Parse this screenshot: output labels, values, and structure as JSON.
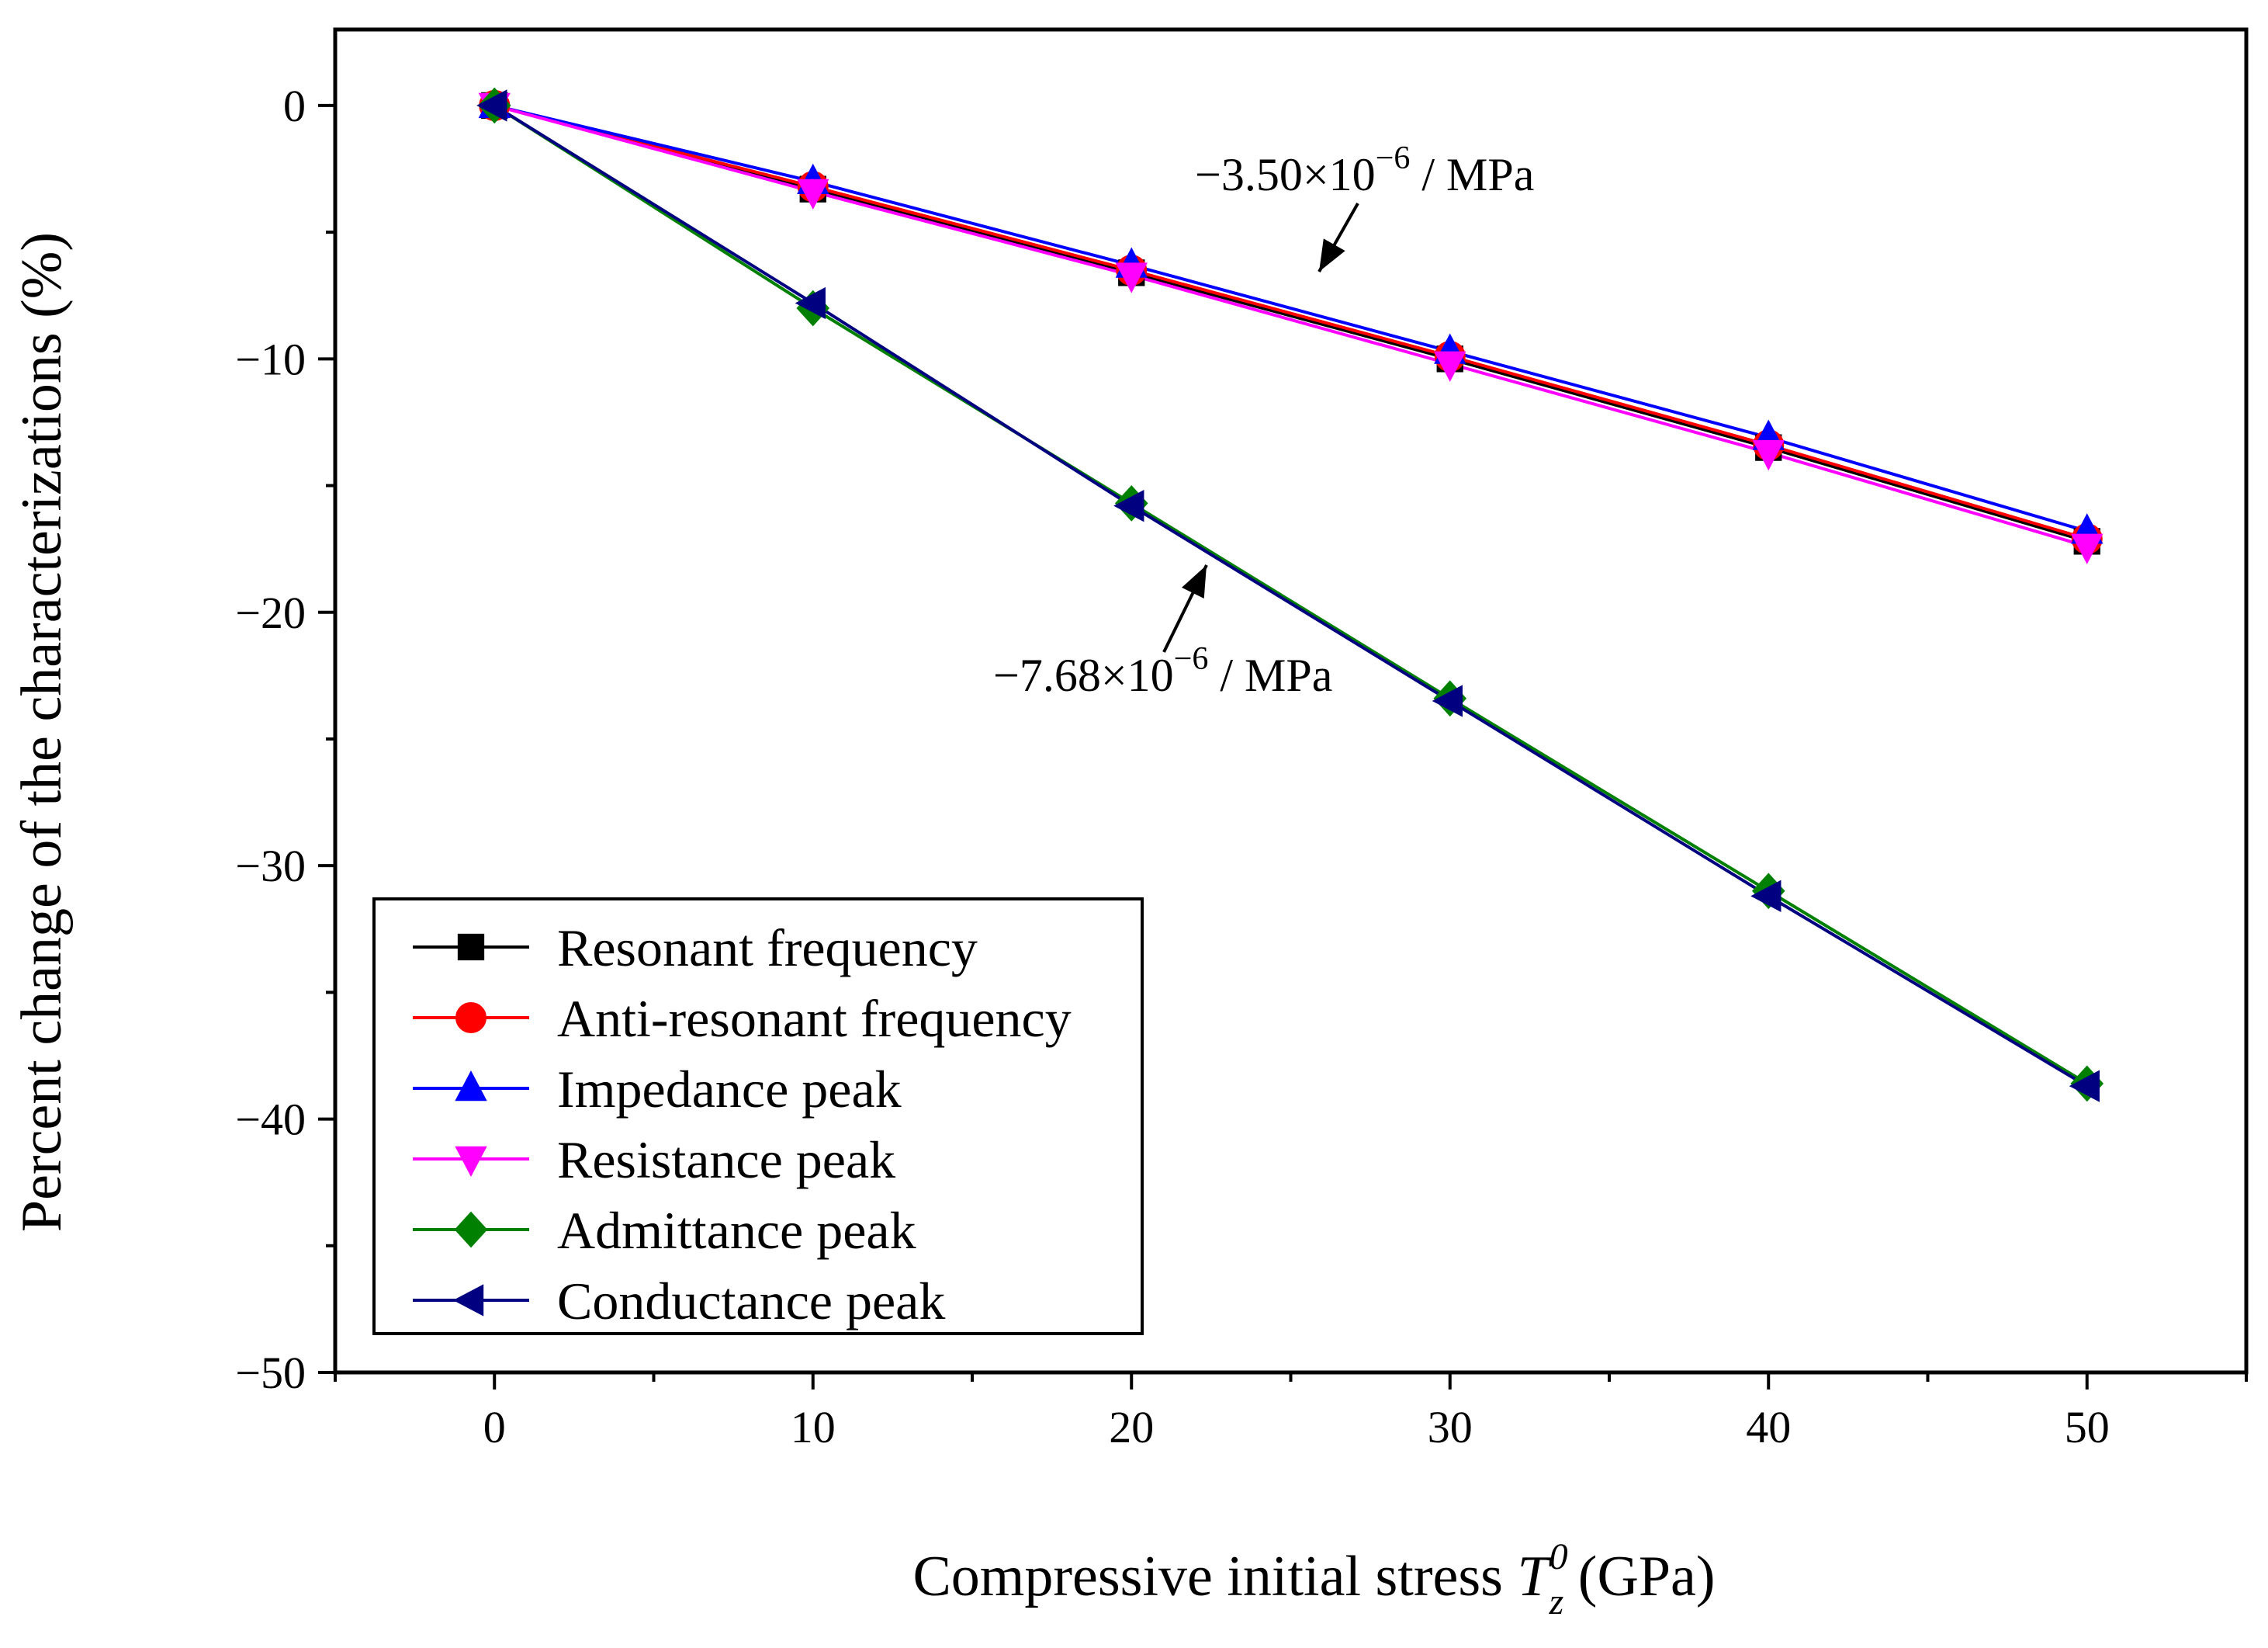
{
  "chart_data": {
    "type": "line",
    "title": "",
    "xlabel": {
      "prefix": "Compressive initial stress ",
      "symbol": "T",
      "superscript": "0",
      "subscript": "z",
      "suffix": " (GPa)"
    },
    "ylabel": "Percent change of the characterizations (%)",
    "xlim": [
      -5,
      55
    ],
    "ylim": [
      -50,
      3
    ],
    "xticks": [
      0,
      10,
      20,
      30,
      40,
      50
    ],
    "yticks": [
      0,
      -10,
      -20,
      -30,
      -40,
      -50
    ],
    "ytick_labels": [
      "0",
      "−10",
      "−20",
      "−30",
      "−40",
      "−50"
    ],
    "x": [
      0,
      10,
      20,
      30,
      40,
      50
    ],
    "legend_position": "bottom-left",
    "series": [
      {
        "name": "Resonant frequency",
        "color": "#000000",
        "marker": "square",
        "values": [
          0,
          -3.3,
          -6.6,
          -10.0,
          -13.5,
          -17.2
        ]
      },
      {
        "name": "Anti-resonant frequency",
        "color": "#ff0000",
        "marker": "circle",
        "values": [
          0,
          -3.2,
          -6.5,
          -9.9,
          -13.4,
          -17.1
        ]
      },
      {
        "name": "Impedance peak",
        "color": "#0000ff",
        "marker": "triangle-up",
        "values": [
          0,
          -3.0,
          -6.3,
          -9.7,
          -13.1,
          -16.8
        ]
      },
      {
        "name": "Resistance peak",
        "color": "#ff00ff",
        "marker": "triangle-down",
        "values": [
          0,
          -3.4,
          -6.7,
          -10.2,
          -13.7,
          -17.4
        ]
      },
      {
        "name": "Admittance peak",
        "color": "#008000",
        "marker": "diamond",
        "values": [
          0,
          -8.0,
          -15.7,
          -23.4,
          -31.0,
          -38.6
        ]
      },
      {
        "name": "Conductance peak",
        "color": "#000080",
        "marker": "triangle-left",
        "values": [
          0,
          -7.8,
          -15.8,
          -23.5,
          -31.2,
          -38.7
        ]
      }
    ],
    "annotations": [
      {
        "base": "−3.50×10",
        "exponent": "−6",
        "unit": " / MPa"
      },
      {
        "base": "−7.68×10",
        "exponent": "−6",
        "unit": " / MPa"
      }
    ]
  }
}
